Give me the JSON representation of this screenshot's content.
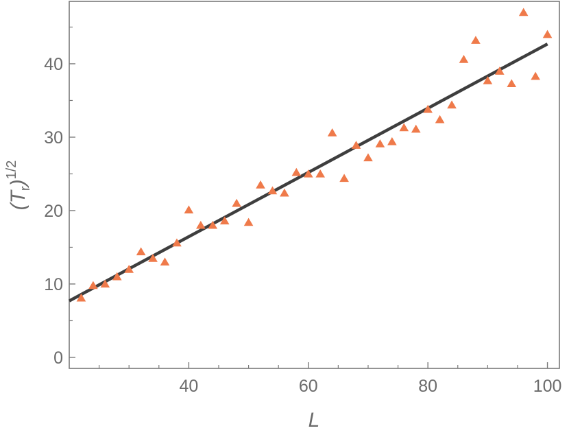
{
  "chart_data": {
    "type": "scatter",
    "xlabel": "L",
    "ylabel": {
      "open": "(",
      "base": "T",
      "sub": "r",
      "close": ")",
      "sup": "1/2"
    },
    "xlim": [
      20,
      102
    ],
    "ylim": [
      -1.5,
      48.5
    ],
    "xticks": [
      40,
      60,
      80,
      100
    ],
    "yticks": [
      0,
      10,
      20,
      30,
      40
    ],
    "grid": false,
    "legend": "none",
    "series": [
      {
        "type": "scatter",
        "marker": "triangle",
        "color": "#ef7a4a",
        "x": [
          22,
          24,
          26,
          28,
          30,
          32,
          34,
          36,
          38,
          40,
          42,
          44,
          46,
          48,
          50,
          52,
          54,
          56,
          58,
          60,
          62,
          64,
          66,
          68,
          70,
          72,
          74,
          76,
          78,
          80,
          82,
          84,
          86,
          88,
          90,
          92,
          94,
          96,
          98,
          100
        ],
        "y": [
          8.1,
          9.8,
          10.0,
          11.0,
          12.0,
          14.4,
          13.5,
          13.0,
          15.6,
          20.1,
          18.0,
          18.0,
          18.6,
          21.0,
          18.4,
          23.5,
          22.7,
          22.4,
          25.2,
          25.0,
          25.0,
          30.6,
          24.4,
          28.9,
          27.2,
          29.1,
          29.4,
          31.3,
          31.1,
          33.8,
          32.4,
          34.4,
          40.6,
          43.2,
          37.7,
          39.0,
          37.3,
          47.0,
          38.3,
          44.0
        ]
      },
      {
        "type": "line",
        "color": "#3e3e3e",
        "x": [
          20,
          100
        ],
        "y": [
          7.7,
          42.7
        ]
      }
    ]
  }
}
